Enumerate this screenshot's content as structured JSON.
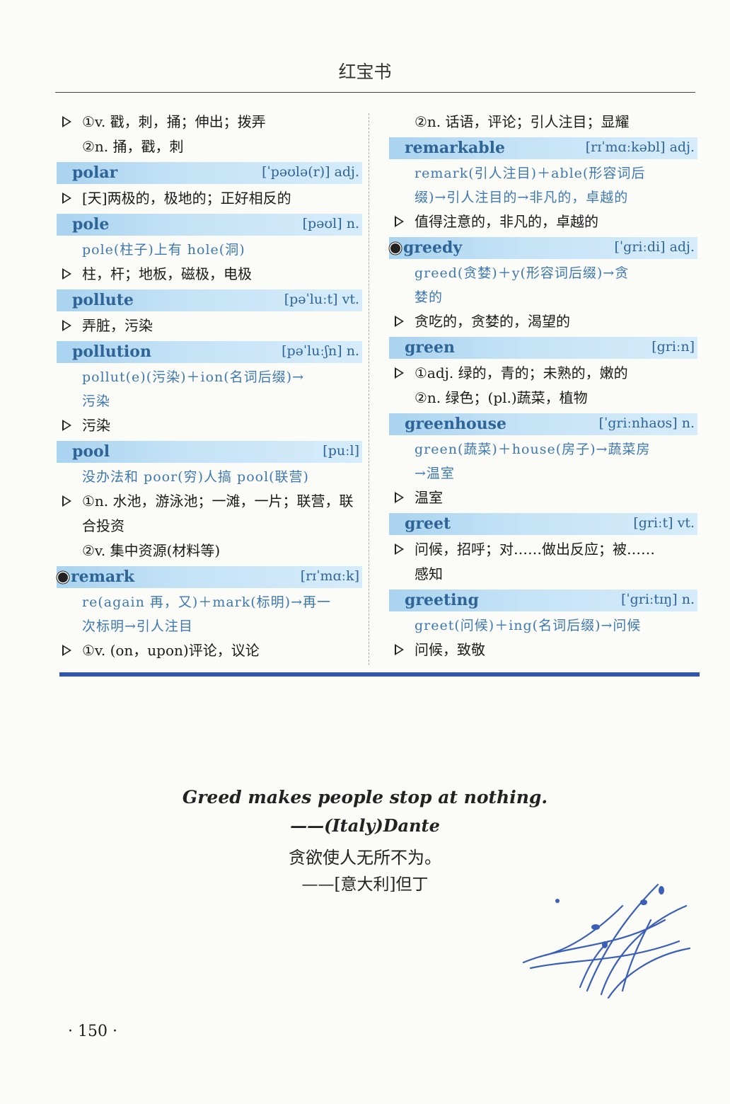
{
  "header": {
    "title": "红宝书"
  },
  "left_column": [
    {
      "kind": "cont",
      "text": "①v. 戳，刺，捅；伸出；拨弄",
      "tri": true
    },
    {
      "kind": "cont",
      "text": "②n. 捅，戳，刺",
      "tri": false
    },
    {
      "kind": "entry",
      "word": "polar",
      "phonetic": "[ˈpəʊlə(r)] adj.",
      "starred": false,
      "etym": [],
      "defs": [
        {
          "text": "[天]两极的，极地的；正好相反的",
          "tri": true
        }
      ]
    },
    {
      "kind": "entry",
      "word": "pole",
      "phonetic": "[pəʊl] n.",
      "starred": false,
      "etym": [
        "pole(柱子)上有 hole(洞)"
      ],
      "defs": [
        {
          "text": "柱，杆；地板，磁极，电极",
          "tri": true
        }
      ]
    },
    {
      "kind": "entry",
      "word": "pollute",
      "phonetic": "[pəˈluːt] vt.",
      "starred": false,
      "etym": [],
      "defs": [
        {
          "text": "弄脏，污染",
          "tri": true
        }
      ]
    },
    {
      "kind": "entry",
      "word": "pollution",
      "phonetic": "[pəˈluːʃn] n.",
      "starred": false,
      "etym": [
        "pollut(e)(污染)＋ion(名词后缀)→",
        "污染"
      ],
      "defs": [
        {
          "text": "污染",
          "tri": true
        }
      ]
    },
    {
      "kind": "entry",
      "word": "pool",
      "phonetic": "[puːl]",
      "starred": false,
      "etym": [
        "没办法和 poor(穷)人搞 pool(联营)"
      ],
      "defs": [
        {
          "text": "①n. 水池，游泳池；一滩，一片；联营，联",
          "tri": true
        },
        {
          "text": "合投资",
          "tri": false
        },
        {
          "text": "②v. 集中资源(材料等)",
          "tri": false
        }
      ]
    },
    {
      "kind": "entry",
      "word": "remark",
      "phonetic": "[rɪˈmɑːk]",
      "starred": true,
      "etym": [
        "re(again 再，又)＋mark(标明)→再一",
        "次标明→引人注目"
      ],
      "defs": [
        {
          "text": "①v. (on，upon)评论，议论",
          "tri": true
        }
      ]
    }
  ],
  "right_column": [
    {
      "kind": "cont",
      "text": "②n. 话语，评论；引人注目；显耀",
      "tri": false
    },
    {
      "kind": "entry",
      "word": "remarkable",
      "phonetic": "[rɪˈmɑːkəbl] adj.",
      "starred": false,
      "etym": [
        "remark(引人注目)＋able(形容词后",
        "缀)→引人注目的→非凡的，卓越的"
      ],
      "defs": [
        {
          "text": "值得注意的，非凡的，卓越的",
          "tri": true
        }
      ]
    },
    {
      "kind": "entry",
      "word": "greedy",
      "phonetic": "[ˈgriːdi] adj.",
      "starred": true,
      "etym": [
        "greed(贪婪)＋y(形容词后缀)→贪",
        "婪的"
      ],
      "defs": [
        {
          "text": "贪吃的，贪婪的，渴望的",
          "tri": true
        }
      ]
    },
    {
      "kind": "entry",
      "word": "green",
      "phonetic": "[griːn]",
      "starred": false,
      "etym": [],
      "defs": [
        {
          "text": "①adj. 绿的，青的；未熟的，嫩的",
          "tri": true
        },
        {
          "text": "②n. 绿色；(pl.)蔬菜，植物",
          "tri": false
        }
      ]
    },
    {
      "kind": "entry",
      "word": "greenhouse",
      "phonetic": "[ˈgriːnhaʊs] n.",
      "starred": false,
      "etym": [
        "green(蔬菜)＋house(房子)→蔬菜房",
        "→温室"
      ],
      "defs": [
        {
          "text": "温室",
          "tri": true
        }
      ]
    },
    {
      "kind": "entry",
      "word": "greet",
      "phonetic": "[griːt] vt.",
      "starred": false,
      "etym": [],
      "defs": [
        {
          "text": "问候，招呼；对……做出反应；被……",
          "tri": true
        },
        {
          "text": "感知",
          "tri": false
        }
      ]
    },
    {
      "kind": "entry",
      "word": "greeting",
      "phonetic": "[ˈgriːtɪŋ] n.",
      "starred": false,
      "etym": [
        "greet(问候)＋ing(名词后缀)→问候"
      ],
      "defs": [
        {
          "text": "问候，致敬",
          "tri": true
        }
      ]
    }
  ],
  "quote": {
    "english": "Greed makes people stop at nothing.",
    "author_en": "——(Italy)Dante",
    "chinese": "贪欲使人无所不为。",
    "author_cn": "——[意大利]但丁"
  },
  "footer": {
    "page_number": "· 150 ·"
  },
  "colors": {
    "headword": "#2f6496",
    "etymology": "#3e78b0",
    "rule": "#3357a8"
  },
  "icons": [
    "triangle-bullet-icon",
    "star-bullet-icon",
    "orchid-illustration"
  ]
}
